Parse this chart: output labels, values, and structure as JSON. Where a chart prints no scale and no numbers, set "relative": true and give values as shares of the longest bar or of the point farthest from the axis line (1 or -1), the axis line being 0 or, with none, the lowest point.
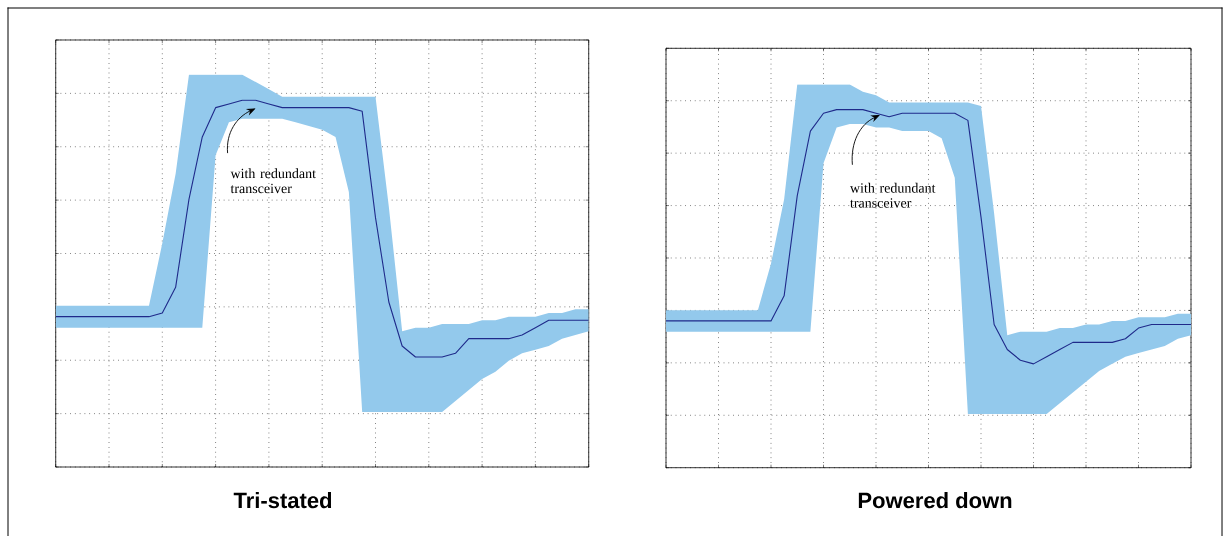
{
  "chart_data": [
    {
      "type": "line",
      "title": "Tri-stated",
      "relative": true,
      "grid": true,
      "categories": [
        null,
        null,
        null,
        null,
        null,
        null,
        null,
        null,
        null,
        null,
        null,
        null,
        null,
        null,
        null,
        null,
        null,
        null,
        null,
        null,
        null,
        null,
        null,
        null,
        null,
        null,
        null,
        null,
        null,
        null,
        null,
        null,
        null,
        null,
        null,
        null,
        null,
        null,
        null,
        null,
        null
      ],
      "series": [
        {
          "color": "#1f2a8a",
          "values": [
            0.41,
            0.41,
            0.41,
            0.41,
            0.41,
            0.41,
            0.41,
            0.41,
            0.42,
            0.49,
            0.73,
            0.9,
            0.98,
            0.99,
            1,
            1,
            0.99,
            0.98,
            0.98,
            0.98,
            0.98,
            0.98,
            0.98,
            0.97,
            0.68,
            0.45,
            0.33,
            0.3,
            0.3,
            0.3,
            0.31,
            0.35,
            0.35,
            0.35,
            0.35,
            0.36,
            0.38,
            0.4,
            0.4,
            0.4,
            0.4
          ],
          "upper": [
            0.44,
            0.44,
            0.44,
            0.44,
            0.44,
            0.44,
            0.44,
            0.44,
            0.61,
            0.8,
            1.07,
            1.07,
            1.07,
            1.07,
            1.07,
            1.05,
            1.03,
            1.01,
            1.01,
            1.01,
            1.01,
            1.01,
            1.01,
            1.01,
            1.01,
            0.71,
            0.37,
            0.38,
            0.38,
            0.39,
            0.39,
            0.39,
            0.4,
            0.4,
            0.41,
            0.41,
            0.41,
            0.42,
            0.42,
            0.43,
            0.43
          ],
          "lower": [
            0.38,
            0.38,
            0.38,
            0.38,
            0.38,
            0.38,
            0.38,
            0.38,
            0.38,
            0.38,
            0.38,
            0.38,
            0.85,
            0.94,
            0.95,
            0.95,
            0.95,
            0.95,
            0.94,
            0.93,
            0.92,
            0.9,
            0.75,
            0.15,
            0.15,
            0.15,
            0.15,
            0.15,
            0.15,
            0.15,
            0.18,
            0.21,
            0.24,
            0.26,
            0.29,
            0.31,
            0.32,
            0.33,
            0.35,
            0.36,
            0.37
          ]
        }
      ],
      "annotations": [
        "with redundant transceiver"
      ]
    },
    {
      "type": "line",
      "title": "Powered down",
      "relative": true,
      "grid": true,
      "categories": [
        null,
        null,
        null,
        null,
        null,
        null,
        null,
        null,
        null,
        null,
        null,
        null,
        null,
        null,
        null,
        null,
        null,
        null,
        null,
        null,
        null,
        null,
        null,
        null,
        null,
        null,
        null,
        null,
        null,
        null,
        null,
        null,
        null,
        null,
        null,
        null,
        null,
        null,
        null,
        null,
        null
      ],
      "series": [
        {
          "color": "#1f2a8a",
          "values": [
            0.41,
            0.41,
            0.41,
            0.41,
            0.41,
            0.41,
            0.41,
            0.41,
            0.41,
            0.48,
            0.76,
            0.94,
            0.99,
            1,
            1,
            1,
            0.99,
            0.98,
            0.99,
            0.99,
            0.99,
            0.99,
            0.99,
            0.97,
            0.7,
            0.4,
            0.33,
            0.3,
            0.29,
            0.31,
            0.33,
            0.35,
            0.35,
            0.35,
            0.35,
            0.36,
            0.39,
            0.4,
            0.4,
            0.4,
            0.4
          ],
          "upper": [
            0.44,
            0.44,
            0.44,
            0.44,
            0.44,
            0.44,
            0.44,
            0.44,
            0.57,
            0.75,
            1.07,
            1.07,
            1.07,
            1.07,
            1.07,
            1.05,
            1.04,
            1.02,
            1.02,
            1.02,
            1.02,
            1.02,
            1.02,
            1.02,
            1.01,
            0.71,
            0.37,
            0.38,
            0.38,
            0.38,
            0.39,
            0.39,
            0.4,
            0.4,
            0.41,
            0.41,
            0.42,
            0.42,
            0.42,
            0.43,
            0.43
          ],
          "lower": [
            0.38,
            0.38,
            0.38,
            0.38,
            0.38,
            0.38,
            0.38,
            0.38,
            0.38,
            0.38,
            0.38,
            0.38,
            0.85,
            0.95,
            0.96,
            0.96,
            0.95,
            0.95,
            0.94,
            0.94,
            0.94,
            0.92,
            0.81,
            0.15,
            0.15,
            0.15,
            0.15,
            0.15,
            0.15,
            0.15,
            0.18,
            0.21,
            0.24,
            0.27,
            0.29,
            0.31,
            0.32,
            0.33,
            0.34,
            0.36,
            0.37
          ]
        }
      ],
      "annotations": [
        "with redundant transceiver"
      ]
    }
  ]
}
